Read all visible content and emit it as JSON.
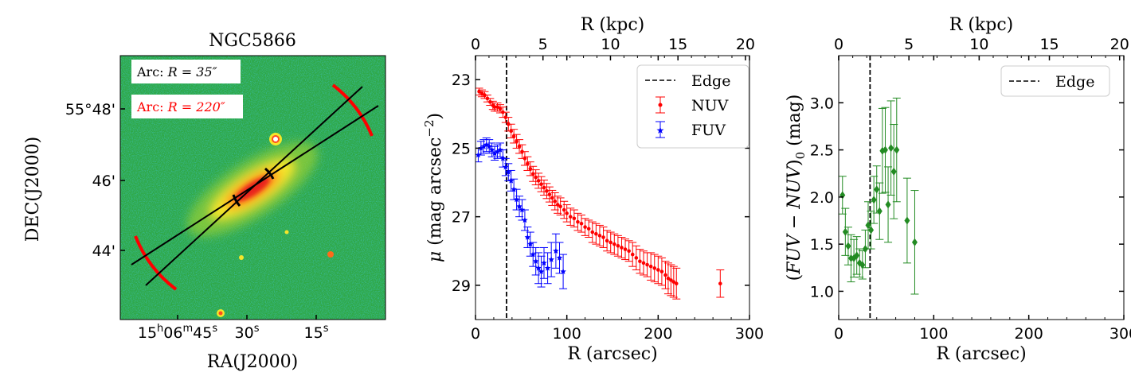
{
  "chart_data": [
    {
      "type": "image",
      "title": "NGC5866",
      "xlabel": "RA(J2000)",
      "ylabel": "DEC(J2000)",
      "x_ticks": [
        "15h06m45s",
        "30s",
        "15s"
      ],
      "y_ticks": [
        "55°48'",
        "46'",
        "44'"
      ],
      "annotations": [
        {
          "label_prefix": "Arc: ",
          "label_math": "R = 35″",
          "color": "#000000"
        },
        {
          "label_prefix": "Arc: ",
          "label_math": "R = 220″",
          "color": "#ff0000"
        }
      ]
    },
    {
      "type": "scatter",
      "xlabel": "R (arcsec)",
      "ylabel": "μ (mag arcsec⁻²)",
      "top_xlabel": "R (kpc)",
      "xlim": [
        0,
        300
      ],
      "ylim": [
        30,
        22.3
      ],
      "y_inverted": true,
      "top_xlim": [
        0,
        20.3
      ],
      "x_ticks": [
        0,
        100,
        200,
        300
      ],
      "y_ticks": [
        23,
        25,
        27,
        29
      ],
      "top_ticks": [
        0,
        5,
        10,
        15,
        20
      ],
      "edge_x": 34,
      "edge_label": "Edge",
      "series": [
        {
          "name": "NUV",
          "color": "#ff0000",
          "marker": "dot",
          "points": [
            [
              4,
              23.35,
              0.1
            ],
            [
              7,
              23.4,
              0.1
            ],
            [
              10,
              23.45,
              0.1
            ],
            [
              13,
              23.55,
              0.1
            ],
            [
              16,
              23.65,
              0.1
            ],
            [
              19,
              23.75,
              0.12
            ],
            [
              21,
              23.8,
              0.12
            ],
            [
              24,
              23.8,
              0.12
            ],
            [
              27,
              23.85,
              0.12
            ],
            [
              30,
              23.95,
              0.15
            ],
            [
              33,
              24.1,
              0.15
            ],
            [
              36,
              24.3,
              0.2
            ],
            [
              39,
              24.5,
              0.2
            ],
            [
              42,
              24.65,
              0.2
            ],
            [
              45,
              24.8,
              0.2
            ],
            [
              48,
              24.95,
              0.2
            ],
            [
              51,
              25.1,
              0.2
            ],
            [
              54,
              25.3,
              0.2
            ],
            [
              57,
              25.45,
              0.2
            ],
            [
              60,
              25.6,
              0.2
            ],
            [
              63,
              25.75,
              0.22
            ],
            [
              66,
              25.85,
              0.22
            ],
            [
              69,
              25.95,
              0.22
            ],
            [
              72,
              26.05,
              0.22
            ],
            [
              75,
              26.15,
              0.22
            ],
            [
              78,
              26.25,
              0.22
            ],
            [
              81,
              26.35,
              0.22
            ],
            [
              84,
              26.45,
              0.22
            ],
            [
              87,
              26.55,
              0.25
            ],
            [
              90,
              26.65,
              0.25
            ],
            [
              93,
              26.7,
              0.25
            ],
            [
              97,
              26.8,
              0.25
            ],
            [
              100,
              26.9,
              0.25
            ],
            [
              104,
              27.0,
              0.25
            ],
            [
              108,
              27.05,
              0.25
            ],
            [
              112,
              27.15,
              0.25
            ],
            [
              116,
              27.2,
              0.25
            ],
            [
              120,
              27.3,
              0.25
            ],
            [
              124,
              27.35,
              0.25
            ],
            [
              128,
              27.45,
              0.3
            ],
            [
              132,
              27.5,
              0.3
            ],
            [
              136,
              27.55,
              0.3
            ],
            [
              140,
              27.6,
              0.3
            ],
            [
              144,
              27.7,
              0.3
            ],
            [
              148,
              27.75,
              0.3
            ],
            [
              152,
              27.8,
              0.3
            ],
            [
              156,
              27.85,
              0.3
            ],
            [
              160,
              27.9,
              0.3
            ],
            [
              164,
              27.95,
              0.3
            ],
            [
              168,
              28.0,
              0.3
            ],
            [
              172,
              28.1,
              0.35
            ],
            [
              176,
              28.2,
              0.35
            ],
            [
              180,
              28.3,
              0.35
            ],
            [
              184,
              28.35,
              0.35
            ],
            [
              188,
              28.4,
              0.35
            ],
            [
              192,
              28.45,
              0.4
            ],
            [
              196,
              28.5,
              0.4
            ],
            [
              200,
              28.55,
              0.4
            ],
            [
              204,
              28.6,
              0.4
            ],
            [
              208,
              28.7,
              0.4
            ],
            [
              211,
              28.8,
              0.45
            ],
            [
              214,
              28.85,
              0.45
            ],
            [
              217,
              28.9,
              0.45
            ],
            [
              220,
              28.95,
              0.45
            ],
            [
              268,
              28.95,
              0.4
            ]
          ]
        },
        {
          "name": "FUV",
          "color": "#0000ff",
          "marker": "star",
          "points": [
            [
              3,
              25.2,
              0.2
            ],
            [
              6,
              25.0,
              0.2
            ],
            [
              9,
              24.95,
              0.2
            ],
            [
              12,
              24.9,
              0.2
            ],
            [
              15,
              24.95,
              0.2
            ],
            [
              18,
              25.05,
              0.2
            ],
            [
              21,
              25.15,
              0.2
            ],
            [
              24,
              25.1,
              0.2
            ],
            [
              27,
              25.05,
              0.2
            ],
            [
              30,
              25.3,
              0.25
            ],
            [
              33,
              25.55,
              0.25
            ],
            [
              36,
              25.7,
              0.25
            ],
            [
              39,
              25.95,
              0.3
            ],
            [
              42,
              26.2,
              0.3
            ],
            [
              45,
              26.5,
              0.3
            ],
            [
              48,
              26.7,
              0.3
            ],
            [
              51,
              26.8,
              0.3
            ],
            [
              54,
              27.1,
              0.3
            ],
            [
              57,
              27.6,
              0.3
            ],
            [
              60,
              27.8,
              0.35
            ],
            [
              63,
              28.1,
              0.35
            ],
            [
              66,
              28.3,
              0.4
            ],
            [
              69,
              28.5,
              0.45
            ],
            [
              72,
              28.6,
              0.45
            ],
            [
              75,
              28.35,
              0.45
            ],
            [
              79,
              28.5,
              0.45
            ],
            [
              83,
              28.25,
              0.5
            ],
            [
              88,
              28.0,
              0.5
            ],
            [
              92,
              28.2,
              0.45
            ],
            [
              96,
              28.6,
              0.5
            ]
          ]
        }
      ]
    },
    {
      "type": "scatter",
      "xlabel": "R (arcsec)",
      "ylabel": "(FUV − NUV)₀ (mag)",
      "top_xlabel": "R (kpc)",
      "xlim": [
        0,
        300
      ],
      "ylim": [
        0.7,
        3.5
      ],
      "top_xlim": [
        0,
        20.3
      ],
      "x_ticks": [
        0,
        100,
        200,
        300
      ],
      "y_ticks": [
        1.0,
        1.5,
        2.0,
        2.5,
        3.0
      ],
      "top_ticks": [
        0,
        5,
        10,
        15,
        20
      ],
      "edge_x": 33,
      "edge_label": "Edge",
      "series": [
        {
          "name": "FUV-NUV",
          "color": "#228b22",
          "marker": "diamond",
          "points": [
            [
              4,
              2.02,
              0.2
            ],
            [
              7,
              1.63,
              0.25
            ],
            [
              10,
              1.48,
              0.2
            ],
            [
              13,
              1.35,
              0.25
            ],
            [
              16,
              1.35,
              0.2
            ],
            [
              19,
              1.38,
              0.2
            ],
            [
              22,
              1.3,
              0.15
            ],
            [
              25,
              1.28,
              0.15
            ],
            [
              28,
              1.45,
              0.2
            ],
            [
              31,
              1.7,
              0.25
            ],
            [
              34,
              1.65,
              0.2
            ],
            [
              37,
              1.97,
              0.25
            ],
            [
              40,
              2.08,
              0.25
            ],
            [
              43,
              1.85,
              0.3
            ],
            [
              46,
              2.49,
              0.45
            ],
            [
              49,
              2.5,
              0.45
            ],
            [
              52,
              1.92,
              0.4
            ],
            [
              55,
              2.52,
              0.5
            ],
            [
              58,
              2.27,
              0.5
            ],
            [
              61,
              2.5,
              0.55
            ],
            [
              72,
              1.75,
              0.45
            ],
            [
              80,
              1.52,
              0.55
            ]
          ]
        }
      ]
    }
  ]
}
